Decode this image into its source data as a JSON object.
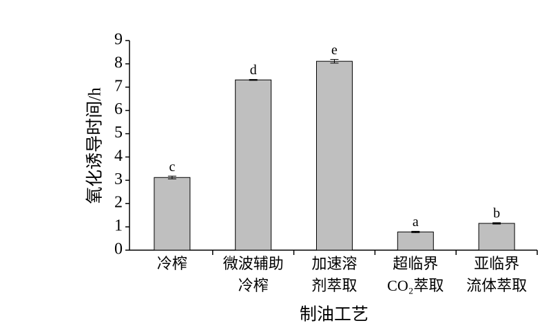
{
  "chart_data": {
    "type": "bar",
    "y_label": "氧化诱导时间/h",
    "x_label": "制油工艺",
    "categories": [
      [
        "冷榨"
      ],
      [
        "微波辅助",
        "冷榨"
      ],
      [
        "加速溶",
        "剂萃取"
      ],
      [
        "超临界",
        "CO₂萃取"
      ],
      [
        "亚临界",
        "流体萃取"
      ]
    ],
    "values": [
      3.12,
      7.31,
      8.11,
      0.78,
      1.15
    ],
    "errors": [
      0.06,
      0.02,
      0.08,
      0.03,
      0.03
    ],
    "significance": [
      "c",
      "d",
      "e",
      "a",
      "b"
    ],
    "color": "#bfbfbf",
    "ylim": [
      0,
      9
    ],
    "yticks": [
      0,
      1,
      2,
      3,
      4,
      5,
      6,
      7,
      8,
      9
    ]
  }
}
